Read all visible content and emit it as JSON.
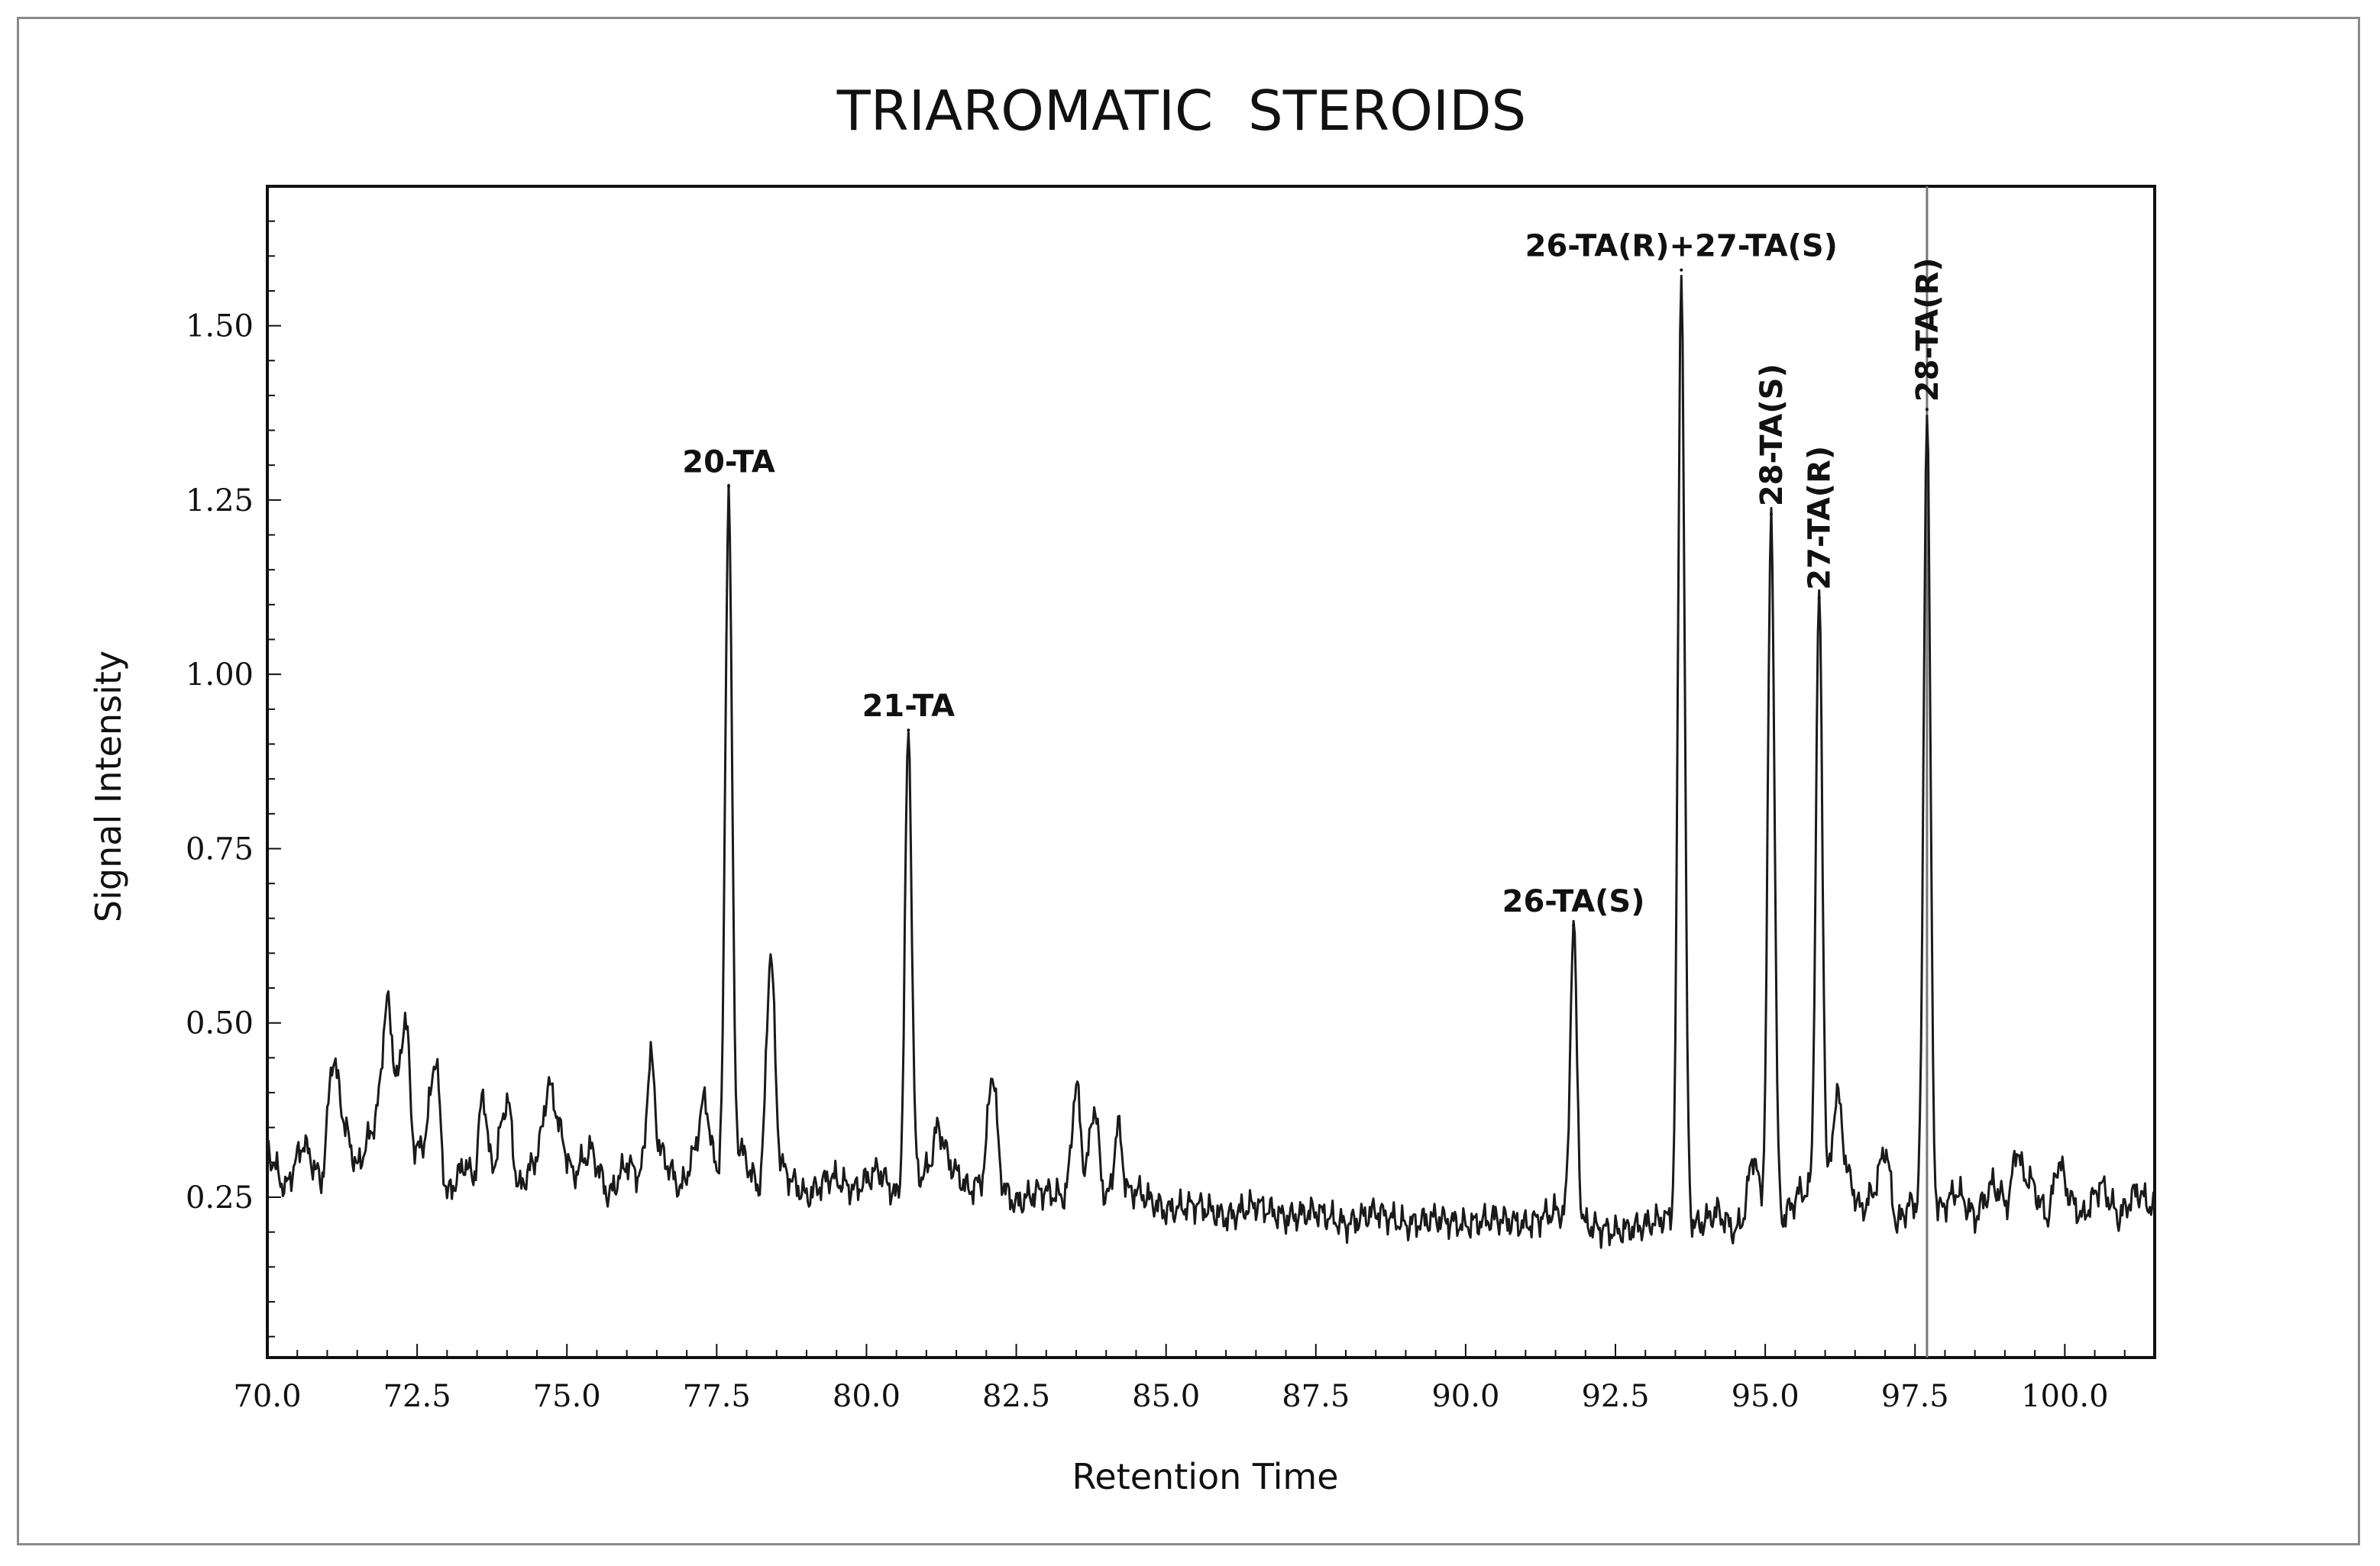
{
  "chart_data": {
    "type": "line",
    "title": "TRIAROMATIC  STEROIDS",
    "xlabel": "Retention Time",
    "ylabel": "Signal Intensity",
    "xlim": [
      70.0,
      101.5
    ],
    "ylim": [
      0.02,
      1.7
    ],
    "x_ticks": [
      70.0,
      72.5,
      75.0,
      77.5,
      80.0,
      82.5,
      85.0,
      87.5,
      90.0,
      92.5,
      95.0,
      97.5,
      100.0
    ],
    "x_tick_labels": [
      "70.0",
      "72.5",
      "75.0",
      "77.5",
      "80.0",
      "82.5",
      "85.0",
      "87.5",
      "90.0",
      "92.5",
      "95.0",
      "97.5",
      "100.0"
    ],
    "y_ticks": [
      0.25,
      0.5,
      0.75,
      1.0,
      1.25,
      1.5
    ],
    "y_tick_labels": [
      "0.25",
      "0.50",
      "0.75",
      "1.00",
      "1.25",
      "1.50"
    ],
    "grid": false,
    "vertical_marker_x": 97.7,
    "baseline_points": [
      [
        70.0,
        0.32
      ],
      [
        70.3,
        0.26
      ],
      [
        70.6,
        0.33
      ],
      [
        70.9,
        0.27
      ],
      [
        71.2,
        0.38
      ],
      [
        71.5,
        0.29
      ],
      [
        71.8,
        0.36
      ],
      [
        72.1,
        0.42
      ],
      [
        72.4,
        0.3
      ],
      [
        72.7,
        0.34
      ],
      [
        73.0,
        0.25
      ],
      [
        73.3,
        0.3
      ],
      [
        73.6,
        0.24
      ],
      [
        73.9,
        0.33
      ],
      [
        74.2,
        0.26
      ],
      [
        74.5,
        0.31
      ],
      [
        74.8,
        0.37
      ],
      [
        75.1,
        0.28
      ],
      [
        75.4,
        0.32
      ],
      [
        75.7,
        0.25
      ],
      [
        76.0,
        0.3
      ],
      [
        76.3,
        0.27
      ],
      [
        76.6,
        0.31
      ],
      [
        76.9,
        0.26
      ],
      [
        77.2,
        0.33
      ],
      [
        77.5,
        0.29
      ],
      [
        77.9,
        0.32
      ],
      [
        78.2,
        0.26
      ],
      [
        78.6,
        0.29
      ],
      [
        79.0,
        0.25
      ],
      [
        79.4,
        0.28
      ],
      [
        79.8,
        0.26
      ],
      [
        80.2,
        0.29
      ],
      [
        80.5,
        0.25
      ],
      [
        80.9,
        0.28
      ],
      [
        81.3,
        0.31
      ],
      [
        81.7,
        0.26
      ],
      [
        82.1,
        0.28
      ],
      [
        82.5,
        0.24
      ],
      [
        82.9,
        0.26
      ],
      [
        83.3,
        0.25
      ],
      [
        83.7,
        0.27
      ],
      [
        84.1,
        0.24
      ],
      [
        84.5,
        0.26
      ],
      [
        85.0,
        0.23
      ],
      [
        85.5,
        0.24
      ],
      [
        86.0,
        0.22
      ],
      [
        86.5,
        0.24
      ],
      [
        87.0,
        0.22
      ],
      [
        87.5,
        0.23
      ],
      [
        88.0,
        0.21
      ],
      [
        88.5,
        0.23
      ],
      [
        89.0,
        0.21
      ],
      [
        89.5,
        0.22
      ],
      [
        90.0,
        0.21
      ],
      [
        90.5,
        0.22
      ],
      [
        91.0,
        0.21
      ],
      [
        91.5,
        0.23
      ],
      [
        92.0,
        0.21
      ],
      [
        92.5,
        0.2
      ],
      [
        93.0,
        0.21
      ],
      [
        93.3,
        0.22
      ],
      [
        93.9,
        0.21
      ],
      [
        94.2,
        0.23
      ],
      [
        94.5,
        0.2
      ],
      [
        94.8,
        0.24
      ],
      [
        95.3,
        0.22
      ],
      [
        95.6,
        0.26
      ],
      [
        96.0,
        0.24
      ],
      [
        96.3,
        0.3
      ],
      [
        96.6,
        0.23
      ],
      [
        96.9,
        0.27
      ],
      [
        97.2,
        0.21
      ],
      [
        97.4,
        0.24
      ],
      [
        97.9,
        0.23
      ],
      [
        98.2,
        0.26
      ],
      [
        98.5,
        0.22
      ],
      [
        98.8,
        0.27
      ],
      [
        99.1,
        0.23
      ],
      [
        99.4,
        0.28
      ],
      [
        99.7,
        0.22
      ],
      [
        100.0,
        0.26
      ],
      [
        100.3,
        0.22
      ],
      [
        100.6,
        0.27
      ],
      [
        100.9,
        0.22
      ],
      [
        101.2,
        0.26
      ],
      [
        101.5,
        0.23
      ]
    ],
    "peaks": [
      {
        "x": 71.1,
        "y": 0.45
      },
      {
        "x": 72.0,
        "y": 0.53
      },
      {
        "x": 72.3,
        "y": 0.51
      },
      {
        "x": 72.8,
        "y": 0.45
      },
      {
        "x": 73.6,
        "y": 0.4
      },
      {
        "x": 74.0,
        "y": 0.39
      },
      {
        "x": 74.7,
        "y": 0.41
      },
      {
        "x": 76.4,
        "y": 0.45
      },
      {
        "x": 77.3,
        "y": 0.39
      },
      {
        "x": 77.7,
        "y": 1.27,
        "label": "20-TA"
      },
      {
        "x": 78.4,
        "y": 0.6
      },
      {
        "x": 80.7,
        "y": 0.92,
        "label": "21-TA"
      },
      {
        "x": 81.2,
        "y": 0.35
      },
      {
        "x": 82.1,
        "y": 0.43
      },
      {
        "x": 83.5,
        "y": 0.41
      },
      {
        "x": 83.8,
        "y": 0.38
      },
      {
        "x": 84.2,
        "y": 0.35
      },
      {
        "x": 91.8,
        "y": 0.64,
        "label": "26-TA(S)"
      },
      {
        "x": 93.6,
        "y": 1.58,
        "label": "26-TA(R)+27-TA(S)"
      },
      {
        "x": 94.8,
        "y": 0.31
      },
      {
        "x": 95.1,
        "y": 1.23,
        "label": "28-TA(S)"
      },
      {
        "x": 95.9,
        "y": 1.11,
        "label": "27-TA(R)"
      },
      {
        "x": 96.2,
        "y": 0.4
      },
      {
        "x": 97.0,
        "y": 0.32
      },
      {
        "x": 97.7,
        "y": 1.38,
        "label": "28-TA(R)"
      },
      {
        "x": 99.2,
        "y": 0.32
      },
      {
        "x": 99.9,
        "y": 0.3
      }
    ]
  }
}
